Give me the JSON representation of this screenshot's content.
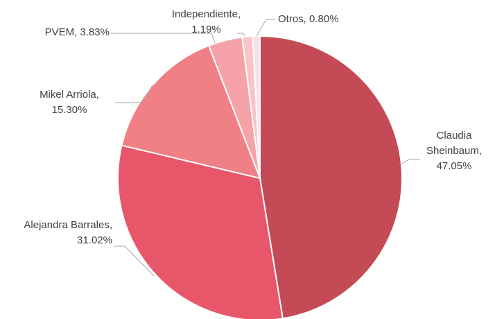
{
  "chart_data": {
    "type": "pie",
    "categories": [
      "Claudia Sheinbaum",
      "Alejandra Barrales",
      "Mikel Arriola",
      "PVEM",
      "Independiente",
      "Otros"
    ],
    "values": [
      47.05,
      31.02,
      15.3,
      3.83,
      1.19,
      0.8
    ],
    "value_labels": [
      "Claudia Sheinbaum, 47.05%",
      "Alejandra Barrales, 31.02%",
      "Mikel Arriola, 15.30%",
      "PVEM, 3.83%",
      "Independiente, 1.19%",
      "Otros, 0.80%"
    ],
    "colors": [
      "#c44a55",
      "#e8566a",
      "#f07f86",
      "#f5a3a8",
      "#f8c4c6",
      "#fbe0e1"
    ]
  }
}
